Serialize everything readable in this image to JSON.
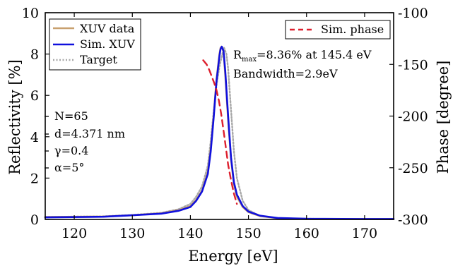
{
  "chart_data": {
    "type": "line",
    "xlabel": "Energy [eV]",
    "ylabel_left": "Reflectivity [%]",
    "ylabel_right": "Phase [degree]",
    "xlim": [
      115,
      175
    ],
    "ylim_left": [
      0,
      10
    ],
    "ylim_right": [
      -100,
      -300
    ],
    "x_ticks": [
      "120",
      "130",
      "140",
      "150",
      "160",
      "170"
    ],
    "y_ticks_left": [
      "0",
      "2",
      "4",
      "6",
      "8",
      "10"
    ],
    "y_ticks_right": [
      "-100",
      "-150",
      "-200",
      "-250",
      "-300"
    ],
    "grid": false,
    "legend_left": [
      "XUV data",
      "Sim. XUV",
      "Target"
    ],
    "legend_right": [
      "Sim. phase"
    ],
    "annotations": {
      "rmax_prefix": "R",
      "rmax_sub": "max",
      "rmax_suffix": "=8.36% at 145.4 eV",
      "bandwidth": "Bandwidth=2.9eV",
      "params": [
        "N=65",
        "d=4.371 nm",
        "γ=0.4",
        "α=5°"
      ]
    },
    "series": [
      {
        "name": "XUV data",
        "axis": "left",
        "color": "#c8a06e",
        "dash": "solid",
        "x": [
          115,
          125,
          130,
          135,
          138,
          140,
          141,
          142,
          143,
          143.5,
          144,
          144.5,
          145,
          145.2,
          145.4,
          145.7,
          146,
          146.5,
          147,
          147.5,
          148,
          149,
          150,
          152,
          155,
          160,
          170,
          175
        ],
        "y": [
          0.12,
          0.14,
          0.2,
          0.3,
          0.45,
          0.65,
          0.95,
          1.4,
          2.3,
          3.4,
          5.0,
          6.8,
          8.0,
          8.3,
          8.36,
          8.1,
          7.0,
          4.8,
          2.9,
          1.7,
          1.1,
          0.6,
          0.35,
          0.16,
          0.06,
          0.02,
          0.02,
          0.02
        ]
      },
      {
        "name": "Sim. XUV",
        "axis": "left",
        "color": "#1010dd",
        "dash": "solid",
        "x": [
          115,
          125,
          130,
          135,
          138,
          140,
          141,
          142,
          143,
          143.5,
          144,
          144.5,
          145,
          145.2,
          145.4,
          145.7,
          146,
          146.5,
          147,
          147.5,
          148,
          149,
          150,
          152,
          155,
          160,
          170,
          175
        ],
        "y": [
          0.1,
          0.13,
          0.2,
          0.28,
          0.42,
          0.6,
          0.9,
          1.35,
          2.2,
          3.3,
          4.9,
          6.7,
          7.9,
          8.25,
          8.36,
          8.15,
          7.2,
          5.0,
          3.0,
          1.8,
          1.2,
          0.65,
          0.38,
          0.18,
          0.07,
          0.03,
          0.02,
          0.02
        ]
      },
      {
        "name": "Target",
        "axis": "left",
        "color": "#a8a8a8",
        "dash": "dotted",
        "x": [
          115,
          125,
          130,
          135,
          138,
          140,
          141,
          142,
          143,
          143.5,
          144,
          144.5,
          145,
          145.5,
          145.8,
          146.2,
          146.5,
          147,
          147.5,
          148,
          149,
          150,
          152,
          155,
          160,
          170,
          175
        ],
        "y": [
          0.12,
          0.15,
          0.22,
          0.32,
          0.5,
          0.75,
          1.1,
          1.6,
          2.6,
          3.8,
          5.2,
          6.5,
          7.4,
          8.0,
          8.3,
          8.0,
          7.3,
          5.3,
          3.3,
          2.0,
          0.9,
          0.45,
          0.17,
          0.06,
          0.03,
          0.02,
          0.02
        ]
      },
      {
        "name": "Sim. phase",
        "axis": "right",
        "color": "#dd1f2d",
        "dash": "dashed",
        "x": [
          142.2,
          142.8,
          143.3,
          143.7,
          144.1,
          144.5,
          144.9,
          145.3,
          145.7,
          146.1,
          146.5,
          147,
          147.5,
          148
        ],
        "y": [
          -146,
          -150,
          -156,
          -162,
          -168,
          -175,
          -185,
          -198,
          -214,
          -230,
          -247,
          -262,
          -275,
          -285
        ]
      }
    ]
  }
}
